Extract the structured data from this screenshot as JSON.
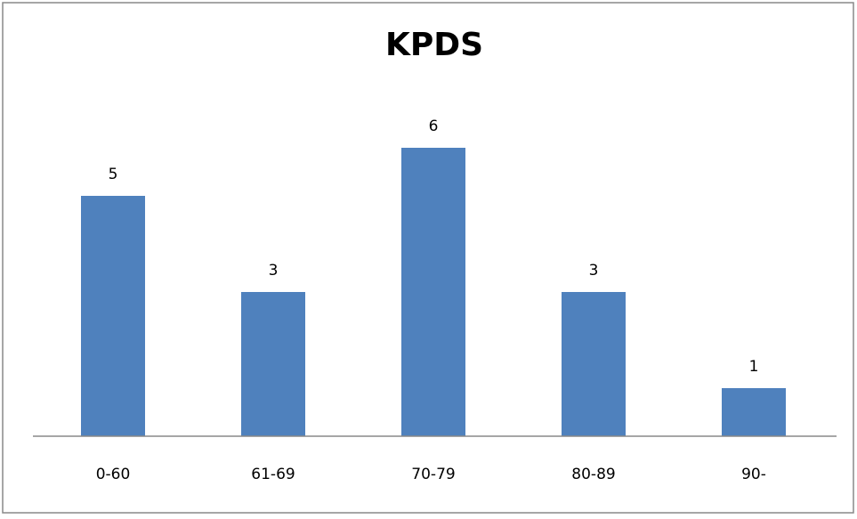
{
  "chart_data": {
    "type": "bar",
    "title": "KPDS",
    "categories": [
      "0-60",
      "61-69",
      "70-79",
      "80-89",
      "90-"
    ],
    "values": [
      5,
      3,
      6,
      3,
      1
    ],
    "color": "#4f81bd",
    "ylim": [
      0,
      7
    ],
    "grid": false
  }
}
